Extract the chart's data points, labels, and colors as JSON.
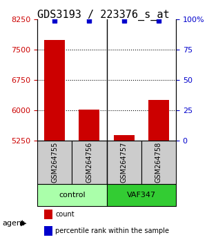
{
  "title": "GDS3193 / 223376_s_at",
  "samples": [
    "GSM264755",
    "GSM264756",
    "GSM264757",
    "GSM264758"
  ],
  "counts": [
    7750,
    6020,
    5380,
    6250
  ],
  "percentile_ranks": [
    99,
    99,
    99,
    99
  ],
  "ylim_left": [
    5250,
    8250
  ],
  "ylim_right": [
    0,
    100
  ],
  "yticks_left": [
    5250,
    6000,
    6750,
    7500,
    8250
  ],
  "yticks_right": [
    0,
    25,
    50,
    75,
    100
  ],
  "ytick_labels_right": [
    "0",
    "25",
    "50",
    "75",
    "100%"
  ],
  "bar_color": "#cc0000",
  "dot_color": "#0000cc",
  "grid_color": "#000000",
  "bar_width": 0.6,
  "groups": [
    {
      "label": "control",
      "samples": [
        0,
        1
      ],
      "color": "#aaffaa"
    },
    {
      "label": "VAF347",
      "samples": [
        2,
        3
      ],
      "color": "#33cc33"
    }
  ],
  "agent_label": "agent",
  "legend_count_label": "count",
  "legend_pct_label": "percentile rank within the sample",
  "sample_box_color": "#cccccc",
  "title_fontsize": 11,
  "tick_fontsize": 8,
  "label_fontsize": 8
}
